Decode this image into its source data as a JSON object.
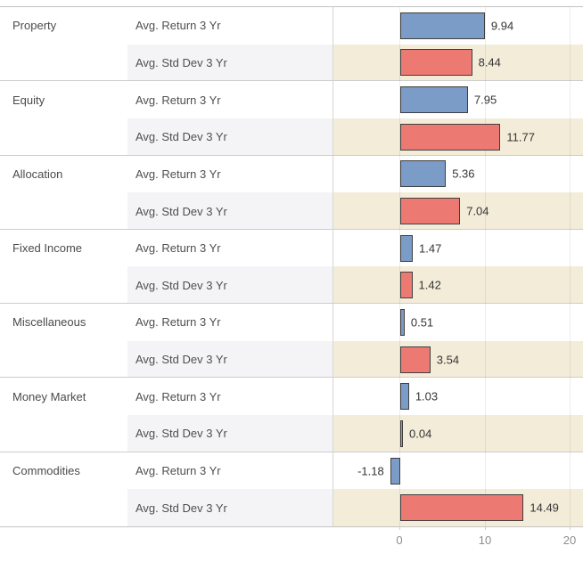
{
  "colors": {
    "bar_blue": "#7a9cc6",
    "bar_red": "#ed7a72",
    "bar_border": "#3f3f3f",
    "stddev_row_chart_bg": "#f3ecd9",
    "stddev_row_label_bg": "#f4f4f6",
    "separator_line": "#cdcdcd",
    "axis_text": "#8e8e8e",
    "value_text": "#353535"
  },
  "axis": {
    "ticks": [
      "0",
      "10",
      "20"
    ]
  },
  "rows": [
    {
      "cat": "Property",
      "measure": "Avg. Return 3 Yr",
      "label": "9.94",
      "v": 9.94
    },
    {
      "cat": "",
      "measure": "Avg. Std Dev 3 Yr",
      "label": "8.44",
      "v": 8.44
    },
    {
      "cat": "Equity",
      "measure": "Avg. Return 3 Yr",
      "label": "7.95",
      "v": 7.95
    },
    {
      "cat": "",
      "measure": "Avg. Std Dev 3 Yr",
      "label": "11.77",
      "v": 11.77
    },
    {
      "cat": "Allocation",
      "measure": "Avg. Return 3 Yr",
      "label": "5.36",
      "v": 5.36
    },
    {
      "cat": "",
      "measure": "Avg. Std Dev 3 Yr",
      "label": "7.04",
      "v": 7.04
    },
    {
      "cat": "Fixed Income",
      "measure": "Avg. Return 3 Yr",
      "label": "1.47",
      "v": 1.47
    },
    {
      "cat": "",
      "measure": "Avg. Std Dev 3 Yr",
      "label": "1.42",
      "v": 1.42
    },
    {
      "cat": "Miscellaneous",
      "measure": "Avg. Return 3 Yr",
      "label": "0.51",
      "v": 0.51
    },
    {
      "cat": "",
      "measure": "Avg. Std Dev 3 Yr",
      "label": "3.54",
      "v": 3.54
    },
    {
      "cat": "Money Market",
      "measure": "Avg. Return 3 Yr",
      "label": "1.03",
      "v": 1.03
    },
    {
      "cat": "",
      "measure": "Avg. Std Dev 3 Yr",
      "label": "0.04",
      "v": 0.04
    },
    {
      "cat": "Commodities",
      "measure": "Avg. Return 3 Yr",
      "label": "-1.18",
      "v": -1.18
    },
    {
      "cat": "",
      "measure": "Avg. Std Dev 3 Yr",
      "label": "14.49",
      "v": 14.49
    }
  ],
  "chart_data": {
    "type": "bar",
    "orientation": "horizontal",
    "title": "",
    "xlabel": "",
    "ylabel": "",
    "categories": [
      "Property",
      "Equity",
      "Allocation",
      "Fixed Income",
      "Miscellaneous",
      "Money Market",
      "Commodities"
    ],
    "series": [
      {
        "name": "Avg. Return 3 Yr",
        "color": "#7a9cc6",
        "values": [
          9.94,
          7.95,
          5.36,
          1.47,
          0.51,
          1.03,
          -1.18
        ]
      },
      {
        "name": "Avg. Std Dev 3 Yr",
        "color": "#ed7a72",
        "values": [
          8.44,
          11.77,
          7.04,
          1.42,
          3.54,
          0.04,
          14.49
        ]
      }
    ],
    "xlim": [
      -7.8,
      21.5
    ],
    "x_ticks": [
      0,
      10,
      20
    ],
    "grid": true,
    "legend": false,
    "data_labels": true
  }
}
